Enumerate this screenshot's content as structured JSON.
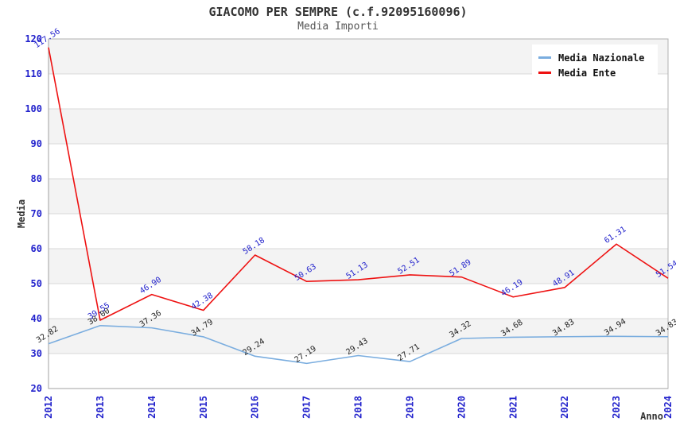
{
  "header": {
    "title": "GIACOMO PER SEMPRE (c.f.92095160096)",
    "subtitle": "Media Importi"
  },
  "chart_data": {
    "type": "line",
    "title": "GIACOMO PER SEMPRE (c.f.92095160096)",
    "subtitle": "Media Importi",
    "xlabel": "Anno",
    "ylabel": "Media",
    "categories": [
      "2012",
      "2013",
      "2014",
      "2015",
      "2016",
      "2017",
      "2018",
      "2019",
      "2020",
      "2021",
      "2022",
      "2023",
      "2024"
    ],
    "series": [
      {
        "name": "Media Nazionale",
        "color": "#7aaddf",
        "label_color": "#222222",
        "values": [
          32.82,
          38.0,
          37.36,
          34.79,
          29.24,
          27.19,
          29.43,
          27.71,
          34.32,
          34.68,
          34.83,
          34.94,
          34.83
        ]
      },
      {
        "name": "Media Ente",
        "color": "#ee1111",
        "label_color": "#2222cc",
        "values": [
          117.56,
          39.55,
          46.9,
          42.38,
          58.18,
          50.63,
          51.13,
          52.51,
          51.89,
          46.19,
          48.91,
          61.31,
          51.54
        ]
      }
    ],
    "ylim": [
      20,
      120
    ],
    "ytick_step": 10,
    "grid": true,
    "legend_position": "top-right",
    "band_colors": [
      "#f3f3f3",
      "#ffffff"
    ],
    "grid_color": "#d9d9d9",
    "border_color": "#b0b0b0",
    "axis_tick_color": "#2222cc",
    "axis_title_color": "#333333"
  }
}
